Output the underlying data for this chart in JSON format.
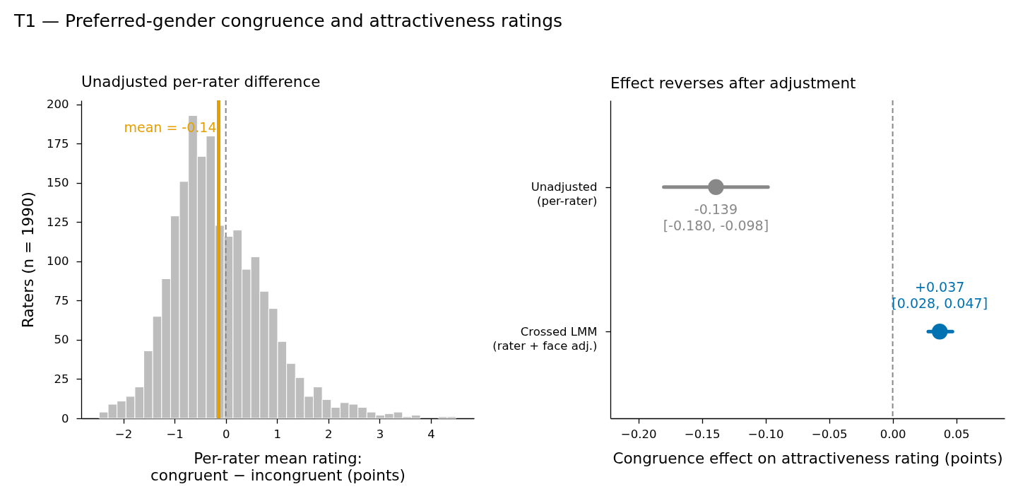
{
  "chart_data": [
    {
      "type": "other",
      "title": "T1 — Preferred-gender congruence and attractiveness ratings"
    },
    {
      "type": "histogram",
      "title": "Unadjusted per-rater difference",
      "xlabel": "Per-rater mean rating:\ncongruent − incongruent (points)",
      "ylabel": "Raters (n = 1990)",
      "bins": [
        -2.47,
        -2.296,
        -2.122,
        -1.948,
        -1.774,
        -1.6,
        -1.426,
        -1.252,
        -1.078,
        -0.904,
        -0.73,
        -0.556,
        -0.382,
        -0.208,
        -0.034,
        0.14,
        0.314,
        0.488,
        0.662,
        0.836,
        1.01,
        1.184,
        1.358,
        1.532,
        1.706,
        1.88,
        2.054,
        2.228,
        2.402,
        2.576,
        2.75,
        2.924,
        3.098,
        3.272,
        3.446,
        3.62,
        3.794,
        3.968,
        4.142,
        4.316,
        4.49
      ],
      "values": [
        4,
        9,
        11,
        14,
        20,
        43,
        65,
        89,
        129,
        151,
        193,
        167,
        180,
        123,
        116,
        120,
        95,
        103,
        81,
        70,
        49,
        35,
        26,
        14,
        20,
        12,
        7,
        10,
        9,
        7,
        4,
        2,
        3,
        4,
        1,
        2,
        0,
        0,
        1,
        1
      ],
      "color": "#bdbdbd",
      "xlim": [
        -2.82,
        4.84
      ],
      "ylim": [
        0,
        202.7
      ],
      "xticks": [
        {
          "value": -2,
          "label": "−2"
        },
        {
          "value": -1,
          "label": "−1"
        },
        0,
        1,
        2,
        3,
        4
      ],
      "yticks": [
        0,
        25,
        50,
        75,
        100,
        125,
        150,
        175,
        200
      ],
      "ref_lines": [
        {
          "axis": "x",
          "value": 0,
          "color": "#888888",
          "line_style": "dashed"
        },
        {
          "axis": "x",
          "value": -0.14,
          "label": "mean = -0.14",
          "color": "#e69f00",
          "line_style": "solid"
        }
      ],
      "grid": false
    },
    {
      "type": "scatter",
      "orientation": "horizontal",
      "title": "Effect reverses after adjustment",
      "xlabel": "Congruence effect on attractiveness rating (points)",
      "categories": [
        "Unadjusted\n(per-rater)",
        "Crossed LMM\n(rater + face adj.)"
      ],
      "values": [
        -0.139,
        0.037
      ],
      "errors": [
        [
          -0.18,
          -0.098
        ],
        [
          0.028,
          0.047
        ]
      ],
      "colors": [
        "#888888",
        "#0072b2"
      ],
      "value_labels": [
        "-0.139\n[-0.180, -0.098]",
        "+0.037\n[0.028, 0.047]"
      ],
      "xlim": [
        -0.222,
        0.088
      ],
      "xticks": [
        {
          "value": -0.2,
          "label": "−0.20"
        },
        {
          "value": -0.15,
          "label": "−0.15"
        },
        {
          "value": -0.1,
          "label": "−0.10"
        },
        {
          "value": -0.05,
          "label": "−0.05"
        },
        {
          "value": 0,
          "label": "0.00"
        },
        {
          "value": 0.05,
          "label": "0.05"
        }
      ],
      "ref_lines": [
        {
          "axis": "x",
          "value": 0,
          "color": "#888888",
          "line_style": "dashed"
        }
      ],
      "marker": "circle",
      "grid": false
    }
  ]
}
